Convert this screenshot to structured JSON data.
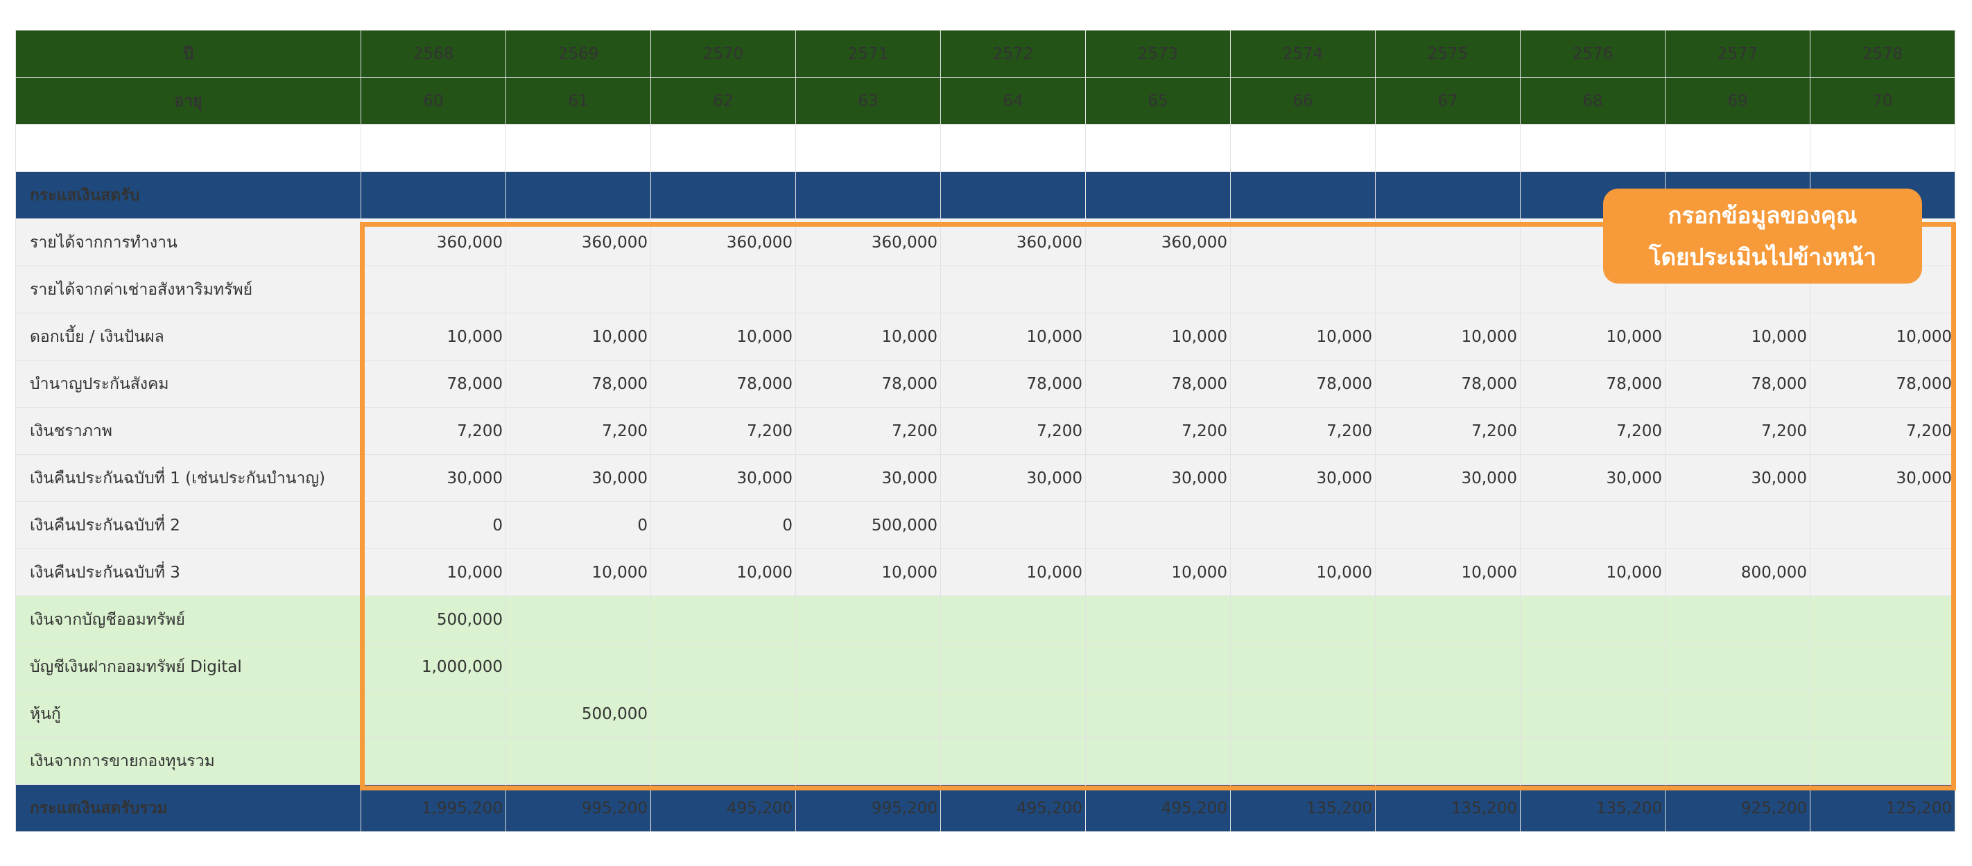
{
  "header": {
    "year_label": "ปี",
    "age_label": "อายุ",
    "years": [
      "2568",
      "2569",
      "2570",
      "2571",
      "2572",
      "2573",
      "2574",
      "2575",
      "2576",
      "2577",
      "2578"
    ],
    "ages": [
      "60",
      "61",
      "62",
      "63",
      "64",
      "65",
      "66",
      "67",
      "68",
      "69",
      "70"
    ]
  },
  "inflow": {
    "section_label": "กระแสเงินสดรับ",
    "rows": [
      {
        "label": "รายได้จากการทำงาน",
        "values": [
          "360,000",
          "360,000",
          "360,000",
          "360,000",
          "360,000",
          "360,000",
          "",
          "",
          "",
          "",
          ""
        ]
      },
      {
        "label": "รายได้จากค่าเช่าอสังหาริมทรัพย์",
        "values": [
          "",
          "",
          "",
          "",
          "",
          "",
          "",
          "",
          "",
          "",
          ""
        ]
      },
      {
        "label": "ดอกเบี้ย / เงินปันผล",
        "values": [
          "10,000",
          "10,000",
          "10,000",
          "10,000",
          "10,000",
          "10,000",
          "10,000",
          "10,000",
          "10,000",
          "10,000",
          "10,000"
        ]
      },
      {
        "label": "บำนาญประกันสังคม",
        "values": [
          "78,000",
          "78,000",
          "78,000",
          "78,000",
          "78,000",
          "78,000",
          "78,000",
          "78,000",
          "78,000",
          "78,000",
          "78,000"
        ]
      },
      {
        "label": "เงินชราภาพ",
        "values": [
          "7,200",
          "7,200",
          "7,200",
          "7,200",
          "7,200",
          "7,200",
          "7,200",
          "7,200",
          "7,200",
          "7,200",
          "7,200"
        ]
      },
      {
        "label": "เงินคืนประกันฉบับที่ 1 (เช่นประกันบำนาญ)",
        "values": [
          "30,000",
          "30,000",
          "30,000",
          "30,000",
          "30,000",
          "30,000",
          "30,000",
          "30,000",
          "30,000",
          "30,000",
          "30,000"
        ]
      },
      {
        "label": "เงินคืนประกันฉบับที่ 2",
        "values": [
          "0",
          "0",
          "0",
          "500,000",
          "",
          "",
          "",
          "",
          "",
          "",
          ""
        ]
      },
      {
        "label": "เงินคืนประกันฉบับที่ 3",
        "values": [
          "10,000",
          "10,000",
          "10,000",
          "10,000",
          "10,000",
          "10,000",
          "10,000",
          "10,000",
          "10,000",
          "800,000",
          ""
        ]
      }
    ],
    "asset_rows": [
      {
        "label": "เงินจากบัญชีออมทรัพย์",
        "values": [
          "500,000",
          "",
          "",
          "",
          "",
          "",
          "",
          "",
          "",
          "",
          ""
        ]
      },
      {
        "label": "บัญชีเงินฝากออมทรัพย์ Digital",
        "values": [
          "1,000,000",
          "",
          "",
          "",
          "",
          "",
          "",
          "",
          "",
          "",
          ""
        ]
      },
      {
        "label": "หุ้นกู้",
        "values": [
          "",
          "500,000",
          "",
          "",
          "",
          "",
          "",
          "",
          "",
          "",
          ""
        ]
      },
      {
        "label": "เงินจากการขายกองทุนรวม",
        "values": [
          "",
          "",
          "",
          "",
          "",
          "",
          "",
          "",
          "",
          "",
          ""
        ]
      }
    ],
    "total_label": "กระแสเงินสดรับรวม",
    "totals": [
      "1,995,200",
      "995,200",
      "495,200",
      "995,200",
      "495,200",
      "495,200",
      "135,200",
      "135,200",
      "135,200",
      "925,200",
      "125,200"
    ]
  },
  "callout": {
    "line1": "กรอกข้อมูลของคุณ",
    "line2": "โดยประเมินไปข้างหน้า"
  },
  "colors": {
    "header_green": "#245318",
    "section_blue": "#1f497d",
    "row_gray": "#f2f2f2",
    "row_light_green": "#daf2d0",
    "highlight_orange": "#f79a3a"
  }
}
